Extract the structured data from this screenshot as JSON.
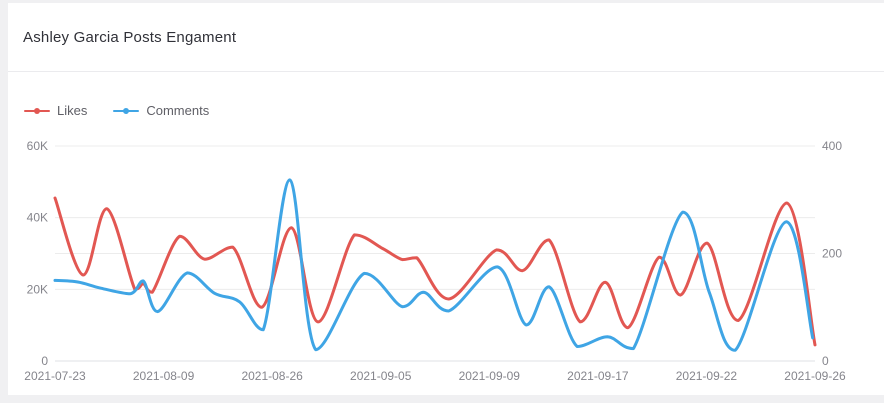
{
  "header": {
    "title": "Ashley Garcia Posts Engament"
  },
  "legend": {
    "items": [
      {
        "label": "Likes",
        "color": "#e25752"
      },
      {
        "label": "Comments",
        "color": "#3fa5e5"
      }
    ]
  },
  "chart_data": {
    "type": "line",
    "smooth": true,
    "grid": true,
    "legend_position": "top-left",
    "x_ticks": [
      "2021-07-23",
      "2021-08-09",
      "2021-08-26",
      "2021-09-05",
      "2021-09-09",
      "2021-09-17",
      "2021-09-22",
      "2021-09-26"
    ],
    "left_axis": {
      "series": "Likes",
      "min": 0,
      "max": 60000,
      "tick_values": [
        0,
        20000,
        40000,
        60000
      ],
      "tick_labels": [
        "0",
        "20K",
        "40K",
        "60K"
      ]
    },
    "right_axis": {
      "series": "Comments",
      "min": 0,
      "max": 400,
      "tick_values": [
        0,
        200,
        400
      ],
      "tick_labels": [
        "0",
        "200",
        "400"
      ]
    },
    "series": [
      {
        "name": "Likes",
        "axis": "left",
        "color": "#e25752",
        "points": [
          [
            0.0,
            45500
          ],
          [
            0.037,
            24000
          ],
          [
            0.068,
            42500
          ],
          [
            0.105,
            20000
          ],
          [
            0.116,
            21600
          ],
          [
            0.128,
            19200
          ],
          [
            0.164,
            34800
          ],
          [
            0.197,
            28400
          ],
          [
            0.234,
            31800
          ],
          [
            0.272,
            15000
          ],
          [
            0.311,
            37200
          ],
          [
            0.346,
            10900
          ],
          [
            0.394,
            35200
          ],
          [
            0.431,
            31400
          ],
          [
            0.457,
            28300
          ],
          [
            0.476,
            28800
          ],
          [
            0.518,
            17300
          ],
          [
            0.581,
            31000
          ],
          [
            0.615,
            25200
          ],
          [
            0.65,
            33800
          ],
          [
            0.691,
            10900
          ],
          [
            0.724,
            22000
          ],
          [
            0.754,
            9300
          ],
          [
            0.795,
            29000
          ],
          [
            0.823,
            18400
          ],
          [
            0.858,
            32900
          ],
          [
            0.899,
            11300
          ],
          [
            0.963,
            44100
          ],
          [
            1.0,
            4500
          ]
        ]
      },
      {
        "name": "Comments",
        "axis": "right",
        "color": "#3fa5e5",
        "points": [
          [
            0.0,
            150
          ],
          [
            0.03,
            147
          ],
          [
            0.059,
            136
          ],
          [
            0.099,
            125
          ],
          [
            0.116,
            149
          ],
          [
            0.135,
            92
          ],
          [
            0.174,
            164
          ],
          [
            0.21,
            126
          ],
          [
            0.243,
            110
          ],
          [
            0.274,
            58
          ],
          [
            0.309,
            337
          ],
          [
            0.343,
            21
          ],
          [
            0.407,
            163
          ],
          [
            0.457,
            101
          ],
          [
            0.485,
            128
          ],
          [
            0.518,
            93
          ],
          [
            0.582,
            175
          ],
          [
            0.62,
            67
          ],
          [
            0.65,
            138
          ],
          [
            0.687,
            27
          ],
          [
            0.727,
            45
          ],
          [
            0.761,
            23
          ],
          [
            0.826,
            277
          ],
          [
            0.861,
            127
          ],
          [
            0.895,
            20
          ],
          [
            0.962,
            259
          ],
          [
            0.997,
            43
          ]
        ]
      }
    ]
  }
}
